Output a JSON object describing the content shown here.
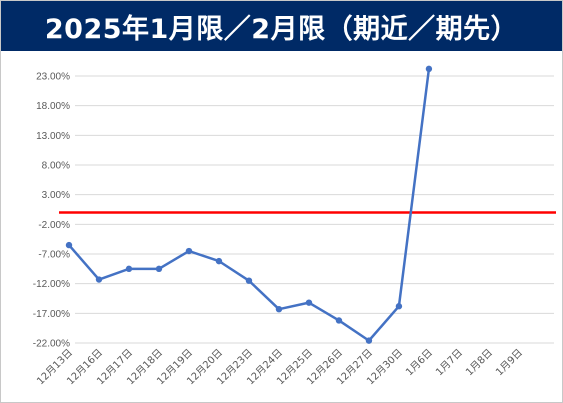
{
  "chart_data": {
    "type": "line",
    "title": "2025年1月限／2月限（期近／期先）",
    "x": [
      "12月13日",
      "12月16日",
      "12月17日",
      "12月18日",
      "12月19日",
      "12月20日",
      "12月23日",
      "12月24日",
      "12月25日",
      "12月26日",
      "12月27日",
      "12月30日",
      "1月6日",
      "1月7日",
      "1月8日",
      "1月9日"
    ],
    "series": [
      {
        "values": [
          -5.5,
          -11.3,
          -9.5,
          -9.5,
          -6.5,
          -8.2,
          -11.5,
          -16.3,
          -15.2,
          -18.2,
          -21.6,
          -15.8,
          24.2,
          null,
          null,
          null
        ]
      }
    ],
    "yticks": [
      "23.00%",
      "18.00%",
      "13.00%",
      "8.00%",
      "3.00%",
      "-2.00%",
      "-7.00%",
      "-12.00%",
      "-17.00%",
      "-22.00%"
    ],
    "ylim": [
      -22,
      23
    ],
    "reference_line": {
      "value": 0,
      "color": "#ff0000"
    },
    "line_color": "#4472c4",
    "grid": true,
    "colors": {
      "title_bg": "#002a66",
      "title_text": "#ffffff",
      "grid": "#d9d9d9"
    }
  }
}
